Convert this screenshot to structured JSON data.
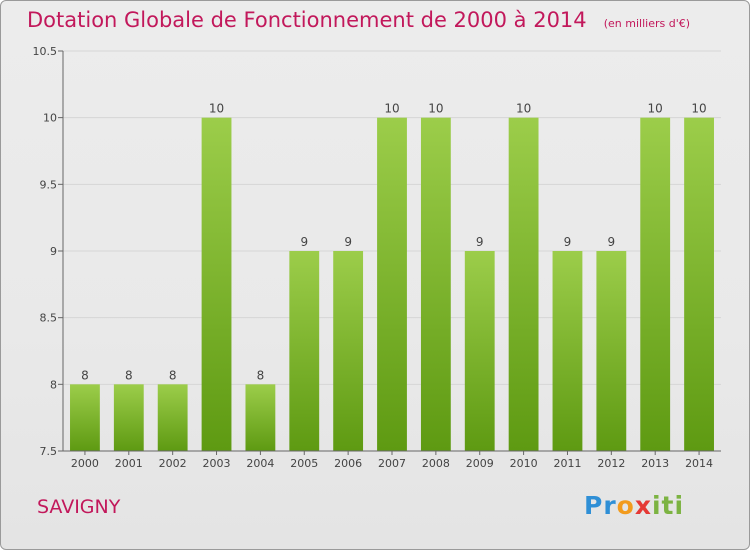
{
  "header": {
    "title": "Dotation Globale de Fonctionnement de 2000 à 2014",
    "subtitle": "(en milliers d'€)"
  },
  "footer": {
    "commune": "SAVIGNY",
    "logo_text": "Proxiti"
  },
  "colors": {
    "accent": "#c2185b",
    "bar_light": "#9ccd4a",
    "bar_dark": "#5e9a12",
    "axis": "#666666",
    "grid": "#d6d6d6"
  },
  "chart_data": {
    "type": "bar",
    "title": "Dotation Globale de Fonctionnement de 2000 à 2014",
    "subtitle": "(en milliers d'€)",
    "xlabel": "",
    "ylabel": "",
    "categories": [
      "2000",
      "2001",
      "2002",
      "2003",
      "2004",
      "2005",
      "2006",
      "2007",
      "2008",
      "2009",
      "2010",
      "2011",
      "2012",
      "2013",
      "2014"
    ],
    "values": [
      8,
      8,
      8,
      10,
      8,
      9,
      9,
      10,
      10,
      9,
      10,
      9,
      9,
      10,
      10
    ],
    "data_labels": [
      "8",
      "8",
      "8",
      "10",
      "8",
      "9",
      "9",
      "10",
      "10",
      "9",
      "10",
      "9",
      "9",
      "10",
      "10"
    ],
    "ylim": [
      7.5,
      10.5
    ],
    "yticks": [
      7.5,
      8,
      8.5,
      9,
      9.5,
      10,
      10.5
    ],
    "ytick_labels": [
      "7.5",
      "8",
      "8.5",
      "9",
      "9.5",
      "10",
      "10.5"
    ],
    "grid": true,
    "legend": "none"
  }
}
